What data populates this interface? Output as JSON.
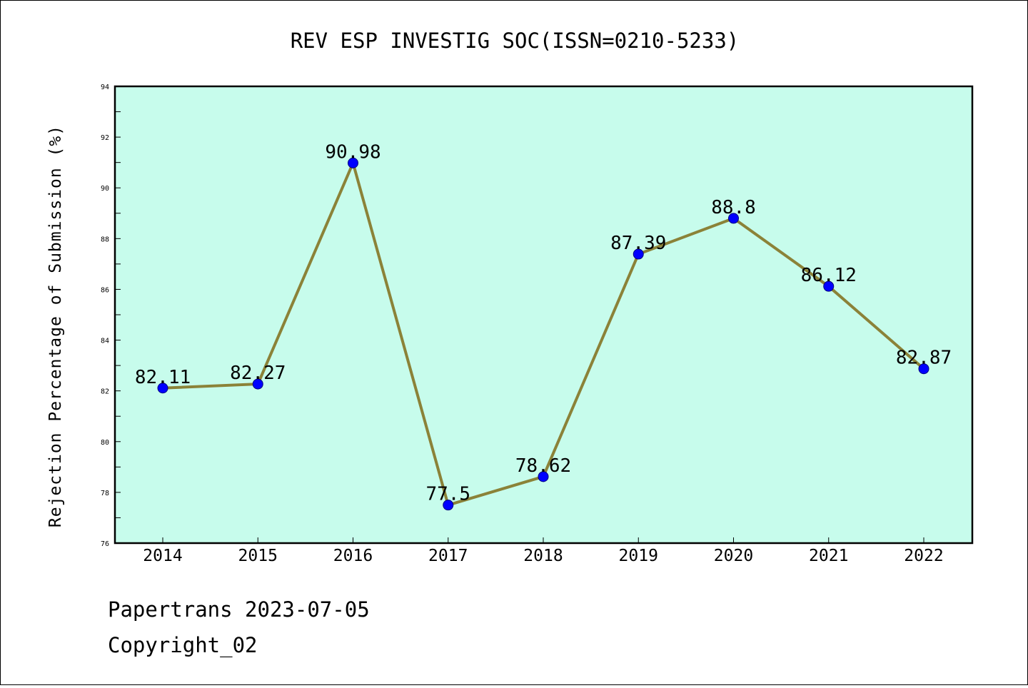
{
  "chart_data": {
    "type": "line",
    "title": "REV ESP INVESTIG SOC(ISSN=0210-5233)",
    "xlabel": "",
    "ylabel": "Rejection Percentage of Submission (%)",
    "categories": [
      "2014",
      "2015",
      "2016",
      "2017",
      "2018",
      "2019",
      "2020",
      "2021",
      "2022"
    ],
    "series": [
      {
        "values": [
          82.11,
          82.27,
          90.98,
          77.5,
          78.62,
          87.39,
          88.8,
          86.12,
          82.87
        ],
        "data_labels": [
          "82.11",
          "82.27",
          "90.98",
          "77.5",
          "78.62",
          "87.39",
          "88.8",
          "86.12",
          "82.87"
        ]
      }
    ],
    "ylim": [
      76,
      94
    ],
    "yticks": [
      "76",
      "78",
      "80",
      "82",
      "84",
      "86",
      "88",
      "90",
      "92",
      "94"
    ],
    "grid": false,
    "legend": "none",
    "colors": {
      "plot_background": "#c7fcec",
      "line": "#8b8238",
      "marker": "#0000ff",
      "marker_edge": "#000080"
    }
  },
  "footer": {
    "line1": "Papertrans 2023-07-05",
    "line2": "Copyright_02"
  }
}
